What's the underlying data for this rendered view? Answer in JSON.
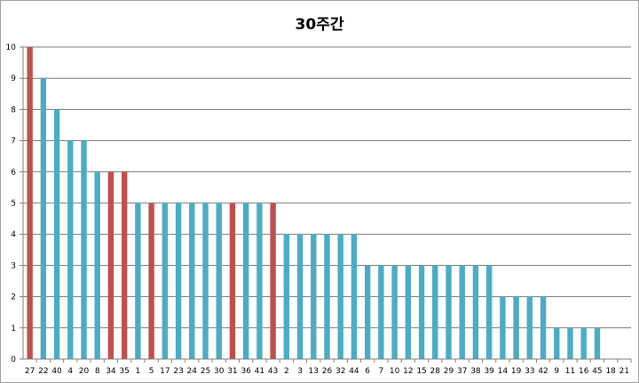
{
  "colors": {
    "accent": "#4BACC6",
    "highlight": "#C0504D",
    "grid": "#7f7f7f",
    "axis": "#808080"
  },
  "chart_data": {
    "type": "bar",
    "title": "30주간",
    "xlabel": "",
    "ylabel": "",
    "ylim": [
      0,
      10
    ],
    "yticks": [
      0,
      1,
      2,
      3,
      4,
      5,
      6,
      7,
      8,
      9,
      10
    ],
    "grid": true,
    "legend": "none",
    "categories": [
      "27",
      "22",
      "40",
      "4",
      "20",
      "8",
      "34",
      "35",
      "1",
      "5",
      "17",
      "23",
      "24",
      "25",
      "30",
      "31",
      "36",
      "41",
      "43",
      "2",
      "3",
      "13",
      "26",
      "32",
      "44",
      "6",
      "7",
      "10",
      "12",
      "15",
      "28",
      "29",
      "37",
      "38",
      "39",
      "14",
      "19",
      "33",
      "42",
      "9",
      "11",
      "16",
      "45",
      "18",
      "21"
    ],
    "values": [
      10,
      9,
      8,
      7,
      7,
      6,
      6,
      6,
      5,
      5,
      5,
      5,
      5,
      5,
      5,
      5,
      5,
      5,
      5,
      4,
      4,
      4,
      4,
      4,
      4,
      3,
      3,
      3,
      3,
      3,
      3,
      3,
      3,
      3,
      3,
      2,
      2,
      2,
      2,
      1,
      1,
      1,
      1,
      0,
      0
    ],
    "highlighted_categories": [
      "27",
      "34",
      "35",
      "5",
      "31",
      "43"
    ]
  }
}
